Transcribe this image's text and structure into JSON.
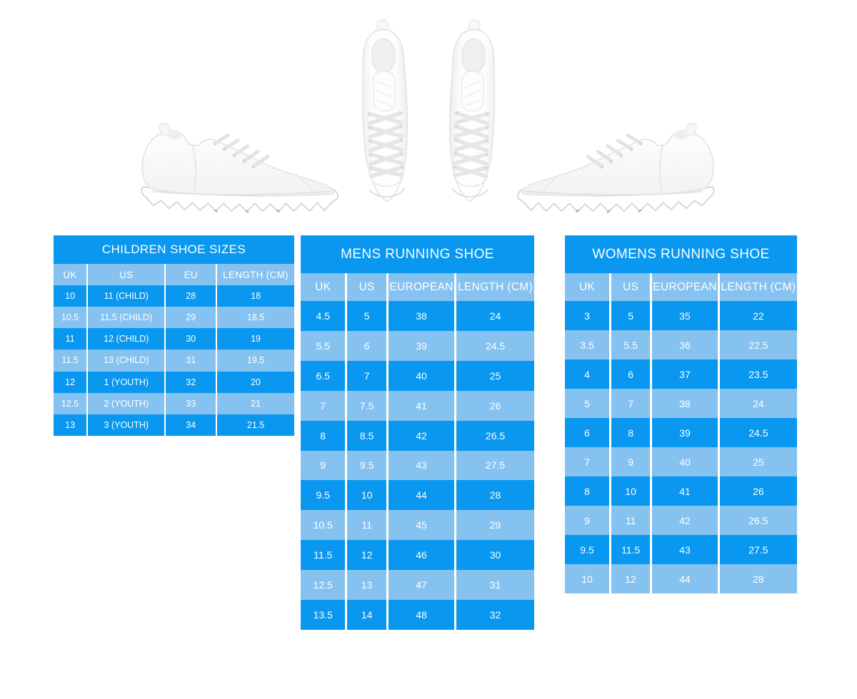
{
  "theme": {
    "table_blue_dark": "#0997F0",
    "table_blue_light": "#86C2F0",
    "table_text_color": "#FFFFFF",
    "page_background": "#FFFFFF"
  },
  "images": {
    "left_shoe": "white-sneaker-side-view",
    "center_shoes": "white-sneakers-pair-top-view",
    "right_shoe": "white-sneaker-side-view-mirrored"
  },
  "chart_data": [
    {
      "type": "table",
      "title": "CHILDREN SHOE SIZES",
      "columns": [
        "UK",
        "US",
        "EU",
        "LENGTH (CM)"
      ],
      "rows": [
        [
          "10",
          "11 (CHILD)",
          "28",
          "18"
        ],
        [
          "10.5",
          "11.5 (CHILD)",
          "29",
          "18.5"
        ],
        [
          "11",
          "12 (CHILD)",
          "30",
          "19"
        ],
        [
          "11.5",
          "13 (CHILD)",
          "31",
          "19.5"
        ],
        [
          "12",
          "1 (YOUTH)",
          "32",
          "20"
        ],
        [
          "12.5",
          "2 (YOUTH)",
          "33",
          "21"
        ],
        [
          "13",
          "3 (YOUTH)",
          "34",
          "21.5"
        ]
      ]
    },
    {
      "type": "table",
      "title": "MENS RUNNING SHOE",
      "columns": [
        "UK",
        "US",
        "EUROPEAN",
        "LENGTH (CM)"
      ],
      "rows": [
        [
          "4.5",
          "5",
          "38",
          "24"
        ],
        [
          "5.5",
          "6",
          "39",
          "24.5"
        ],
        [
          "6.5",
          "7",
          "40",
          "25"
        ],
        [
          "7",
          "7.5",
          "41",
          "26"
        ],
        [
          "8",
          "8.5",
          "42",
          "26.5"
        ],
        [
          "9",
          "9.5",
          "43",
          "27.5"
        ],
        [
          "9.5",
          "10",
          "44",
          "28"
        ],
        [
          "10.5",
          "11",
          "45",
          "29"
        ],
        [
          "11.5",
          "12",
          "46",
          "30"
        ],
        [
          "12.5",
          "13",
          "47",
          "31"
        ],
        [
          "13.5",
          "14",
          "48",
          "32"
        ]
      ]
    },
    {
      "type": "table",
      "title": "WOMENS RUNNING SHOE",
      "columns": [
        "UK",
        "US",
        "EUROPEAN",
        "LENGTH (CM)"
      ],
      "rows": [
        [
          "3",
          "5",
          "35",
          "22"
        ],
        [
          "3.5",
          "5.5",
          "36",
          "22.5"
        ],
        [
          "4",
          "6",
          "37",
          "23.5"
        ],
        [
          "5",
          "7",
          "38",
          "24"
        ],
        [
          "6",
          "8",
          "39",
          "24.5"
        ],
        [
          "7",
          "9",
          "40",
          "25"
        ],
        [
          "8",
          "10",
          "41",
          "26"
        ],
        [
          "9",
          "11",
          "42",
          "26.5"
        ],
        [
          "9.5",
          "11.5",
          "43",
          "27.5"
        ],
        [
          "10",
          "12",
          "44",
          "28"
        ]
      ]
    }
  ]
}
